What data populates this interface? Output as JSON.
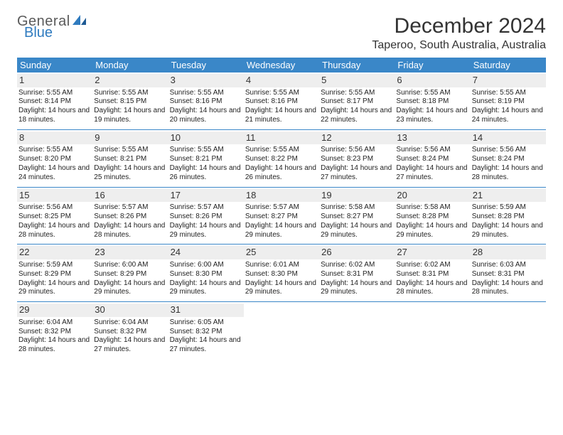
{
  "logo": {
    "text_general": "General",
    "text_blue": "Blue"
  },
  "title": "December 2024",
  "subtitle": "Taperoo, South Australia, Australia",
  "colors": {
    "header_bg": "#3a87c8",
    "header_text": "#ffffff",
    "daynum_bg": "#eeeeee",
    "week_border": "#3a87c8",
    "title_color": "#333333",
    "body_text": "#222222",
    "logo_gray": "#5a5a5a",
    "logo_blue": "#2f7bbf"
  },
  "layout": {
    "columns": 7,
    "rows": 5,
    "title_fontsize": 30,
    "subtitle_fontsize": 16,
    "weekday_fontsize": 13,
    "daynum_fontsize": 13,
    "body_fontsize": 10
  },
  "weekdays": [
    "Sunday",
    "Monday",
    "Tuesday",
    "Wednesday",
    "Thursday",
    "Friday",
    "Saturday"
  ],
  "days": [
    {
      "n": "1",
      "sunrise": "5:55 AM",
      "sunset": "8:14 PM",
      "daylight": "14 hours and 18 minutes."
    },
    {
      "n": "2",
      "sunrise": "5:55 AM",
      "sunset": "8:15 PM",
      "daylight": "14 hours and 19 minutes."
    },
    {
      "n": "3",
      "sunrise": "5:55 AM",
      "sunset": "8:16 PM",
      "daylight": "14 hours and 20 minutes."
    },
    {
      "n": "4",
      "sunrise": "5:55 AM",
      "sunset": "8:16 PM",
      "daylight": "14 hours and 21 minutes."
    },
    {
      "n": "5",
      "sunrise": "5:55 AM",
      "sunset": "8:17 PM",
      "daylight": "14 hours and 22 minutes."
    },
    {
      "n": "6",
      "sunrise": "5:55 AM",
      "sunset": "8:18 PM",
      "daylight": "14 hours and 23 minutes."
    },
    {
      "n": "7",
      "sunrise": "5:55 AM",
      "sunset": "8:19 PM",
      "daylight": "14 hours and 24 minutes."
    },
    {
      "n": "8",
      "sunrise": "5:55 AM",
      "sunset": "8:20 PM",
      "daylight": "14 hours and 24 minutes."
    },
    {
      "n": "9",
      "sunrise": "5:55 AM",
      "sunset": "8:21 PM",
      "daylight": "14 hours and 25 minutes."
    },
    {
      "n": "10",
      "sunrise": "5:55 AM",
      "sunset": "8:21 PM",
      "daylight": "14 hours and 26 minutes."
    },
    {
      "n": "11",
      "sunrise": "5:55 AM",
      "sunset": "8:22 PM",
      "daylight": "14 hours and 26 minutes."
    },
    {
      "n": "12",
      "sunrise": "5:56 AM",
      "sunset": "8:23 PM",
      "daylight": "14 hours and 27 minutes."
    },
    {
      "n": "13",
      "sunrise": "5:56 AM",
      "sunset": "8:24 PM",
      "daylight": "14 hours and 27 minutes."
    },
    {
      "n": "14",
      "sunrise": "5:56 AM",
      "sunset": "8:24 PM",
      "daylight": "14 hours and 28 minutes."
    },
    {
      "n": "15",
      "sunrise": "5:56 AM",
      "sunset": "8:25 PM",
      "daylight": "14 hours and 28 minutes."
    },
    {
      "n": "16",
      "sunrise": "5:57 AM",
      "sunset": "8:26 PM",
      "daylight": "14 hours and 28 minutes."
    },
    {
      "n": "17",
      "sunrise": "5:57 AM",
      "sunset": "8:26 PM",
      "daylight": "14 hours and 29 minutes."
    },
    {
      "n": "18",
      "sunrise": "5:57 AM",
      "sunset": "8:27 PM",
      "daylight": "14 hours and 29 minutes."
    },
    {
      "n": "19",
      "sunrise": "5:58 AM",
      "sunset": "8:27 PM",
      "daylight": "14 hours and 29 minutes."
    },
    {
      "n": "20",
      "sunrise": "5:58 AM",
      "sunset": "8:28 PM",
      "daylight": "14 hours and 29 minutes."
    },
    {
      "n": "21",
      "sunrise": "5:59 AM",
      "sunset": "8:28 PM",
      "daylight": "14 hours and 29 minutes."
    },
    {
      "n": "22",
      "sunrise": "5:59 AM",
      "sunset": "8:29 PM",
      "daylight": "14 hours and 29 minutes."
    },
    {
      "n": "23",
      "sunrise": "6:00 AM",
      "sunset": "8:29 PM",
      "daylight": "14 hours and 29 minutes."
    },
    {
      "n": "24",
      "sunrise": "6:00 AM",
      "sunset": "8:30 PM",
      "daylight": "14 hours and 29 minutes."
    },
    {
      "n": "25",
      "sunrise": "6:01 AM",
      "sunset": "8:30 PM",
      "daylight": "14 hours and 29 minutes."
    },
    {
      "n": "26",
      "sunrise": "6:02 AM",
      "sunset": "8:31 PM",
      "daylight": "14 hours and 29 minutes."
    },
    {
      "n": "27",
      "sunrise": "6:02 AM",
      "sunset": "8:31 PM",
      "daylight": "14 hours and 28 minutes."
    },
    {
      "n": "28",
      "sunrise": "6:03 AM",
      "sunset": "8:31 PM",
      "daylight": "14 hours and 28 minutes."
    },
    {
      "n": "29",
      "sunrise": "6:04 AM",
      "sunset": "8:32 PM",
      "daylight": "14 hours and 28 minutes."
    },
    {
      "n": "30",
      "sunrise": "6:04 AM",
      "sunset": "8:32 PM",
      "daylight": "14 hours and 27 minutes."
    },
    {
      "n": "31",
      "sunrise": "6:05 AM",
      "sunset": "8:32 PM",
      "daylight": "14 hours and 27 minutes."
    }
  ],
  "labels": {
    "sunrise": "Sunrise: ",
    "sunset": "Sunset: ",
    "daylight": "Daylight: "
  }
}
